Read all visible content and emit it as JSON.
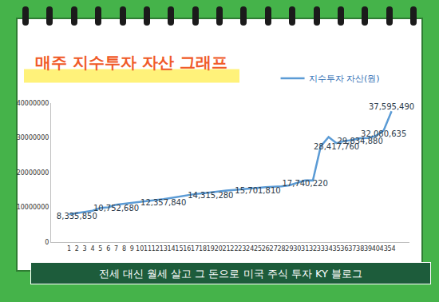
{
  "chart_data": {
    "type": "line",
    "title": "매주 지수투자 자산 그래프",
    "annotations": [
      "전세 대신 월세 살고 그 돈으로 미국 주식 투자 KY 블로그"
    ],
    "categories": [
      "1",
      "2",
      "3",
      "4",
      "5",
      "6",
      "7",
      "8",
      "9",
      "10",
      "11",
      "12",
      "13",
      "14",
      "15",
      "16",
      "17",
      "18",
      "19",
      "20",
      "21",
      "22",
      "23",
      "24",
      "25",
      "26",
      "27",
      "28",
      "29",
      "30",
      "31",
      "32",
      "33",
      "34",
      "35",
      "36",
      "37",
      "38",
      "39",
      "40",
      "43",
      "54"
    ],
    "series": [
      {
        "name": "지수투자 자산(원)",
        "color": "#5b9bd5",
        "values": [
          8000000,
          8335850,
          8700000,
          9000000,
          9800000,
          10000000,
          10752680,
          11000000,
          11300000,
          11600000,
          11900000,
          12100000,
          12357840,
          12700000,
          13100000,
          13400000,
          13800000,
          14000000,
          14315280,
          14600000,
          14800000,
          15000000,
          15200000,
          15400000,
          15701810,
          15800000,
          15900000,
          16000000,
          16300000,
          17000000,
          17740220,
          17700000,
          27500000,
          30200000,
          28417760,
          29000000,
          29300000,
          29834880,
          29900000,
          30500000,
          32080635,
          37595490
        ],
        "value_labels": [
          null,
          "8,335,850",
          null,
          null,
          null,
          null,
          "10,752,680",
          null,
          null,
          null,
          null,
          null,
          "12,357,840",
          null,
          null,
          null,
          null,
          null,
          "14,315,280",
          null,
          null,
          null,
          null,
          null,
          "15,701,810",
          null,
          null,
          null,
          null,
          null,
          "17,740,220",
          null,
          null,
          null,
          "28,417,760",
          null,
          null,
          "29,834,880",
          null,
          null,
          "32,080,635",
          "37,595,490"
        ]
      }
    ],
    "ylim": [
      0,
      40000000
    ],
    "yticks": [
      0,
      10000000,
      20000000,
      30000000,
      40000000
    ],
    "grid": false,
    "data_labels": true,
    "legend": "top right"
  }
}
